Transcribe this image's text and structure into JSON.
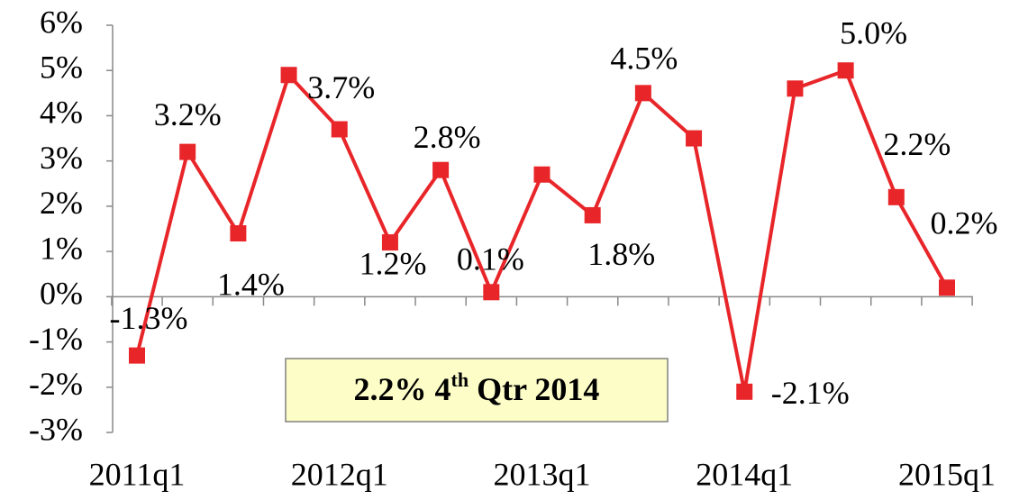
{
  "chart_data": {
    "type": "line",
    "categories": [
      "2011q1",
      null,
      null,
      null,
      "2012q1",
      null,
      null,
      null,
      "2013q1",
      null,
      null,
      null,
      "2014q1",
      null,
      null,
      null,
      "2015q1"
    ],
    "series": [
      {
        "color": "#e8262a",
        "values": [
          -1.3,
          3.2,
          1.4,
          4.9,
          3.7,
          1.2,
          2.8,
          0.1,
          2.7,
          1.8,
          4.5,
          3.5,
          -2.1,
          4.6,
          5.0,
          2.2,
          0.2
        ],
        "value_labels": [
          "-1.3%",
          "3.2%",
          "1.4%",
          null,
          "3.7%",
          "1.2%",
          "2.8%",
          "0.1%",
          null,
          "1.8%",
          "4.5%",
          null,
          "-2.1%",
          null,
          "5.0%",
          "2.2%",
          "0.2%"
        ]
      }
    ],
    "ylim": [
      -3,
      6
    ],
    "yticks": [
      {
        "value": -3,
        "label": "-3%"
      },
      {
        "value": -2,
        "label": "-2%"
      },
      {
        "value": -1,
        "label": "-1%"
      },
      {
        "value": 0,
        "label": "0%"
      },
      {
        "value": 1,
        "label": "1%"
      },
      {
        "value": 2,
        "label": "2%"
      },
      {
        "value": 3,
        "label": "3%"
      },
      {
        "value": 4,
        "label": "4%"
      },
      {
        "value": 5,
        "label": "5%"
      },
      {
        "value": 6,
        "label": "6%"
      }
    ],
    "annotation": {
      "parts": [
        "2.2% 4",
        "th",
        " Qtr 2014"
      ]
    }
  }
}
